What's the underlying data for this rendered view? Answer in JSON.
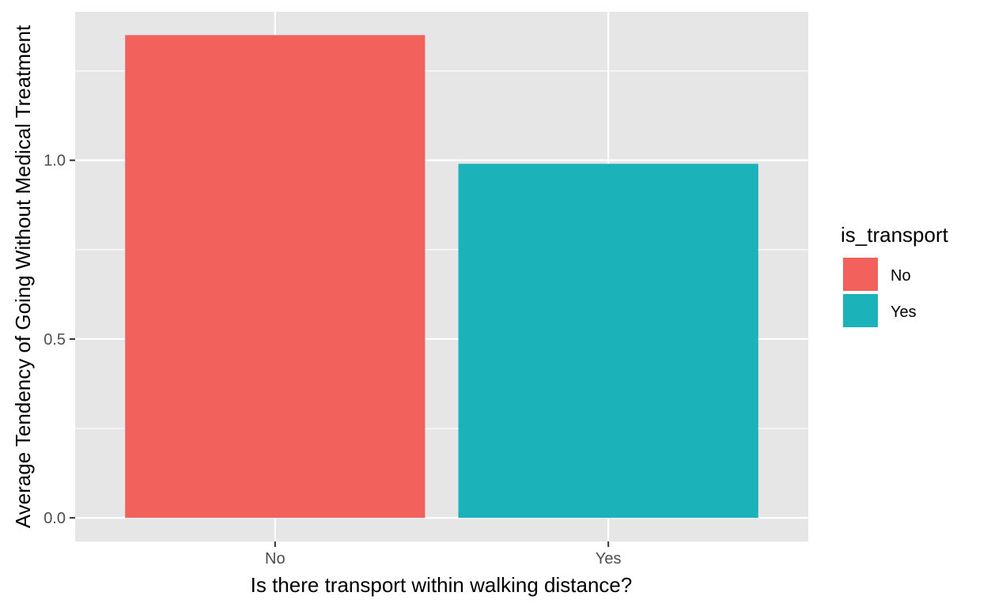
{
  "chart_data": {
    "type": "bar",
    "categories": [
      "No",
      "Yes"
    ],
    "values": [
      1.35,
      0.99
    ],
    "xlabel": "Is there transport within walking distance?",
    "ylabel": "Average Tendency of Going Without Medical Treatment",
    "ylim": [
      -0.066,
      1.415
    ],
    "yticks": [
      0.0,
      0.5,
      1.0
    ],
    "ytick_labels": [
      "0.0",
      "0.5",
      "1.0"
    ],
    "grid": true,
    "legend": {
      "title": "is_transport",
      "position": "right",
      "entries": [
        {
          "label": "No",
          "color": "#F2615B"
        },
        {
          "label": "Yes",
          "color": "#1BB3B9"
        }
      ]
    },
    "colors": {
      "panel_bg": "#E6E6E6",
      "grid": "#FFFFFF"
    }
  }
}
